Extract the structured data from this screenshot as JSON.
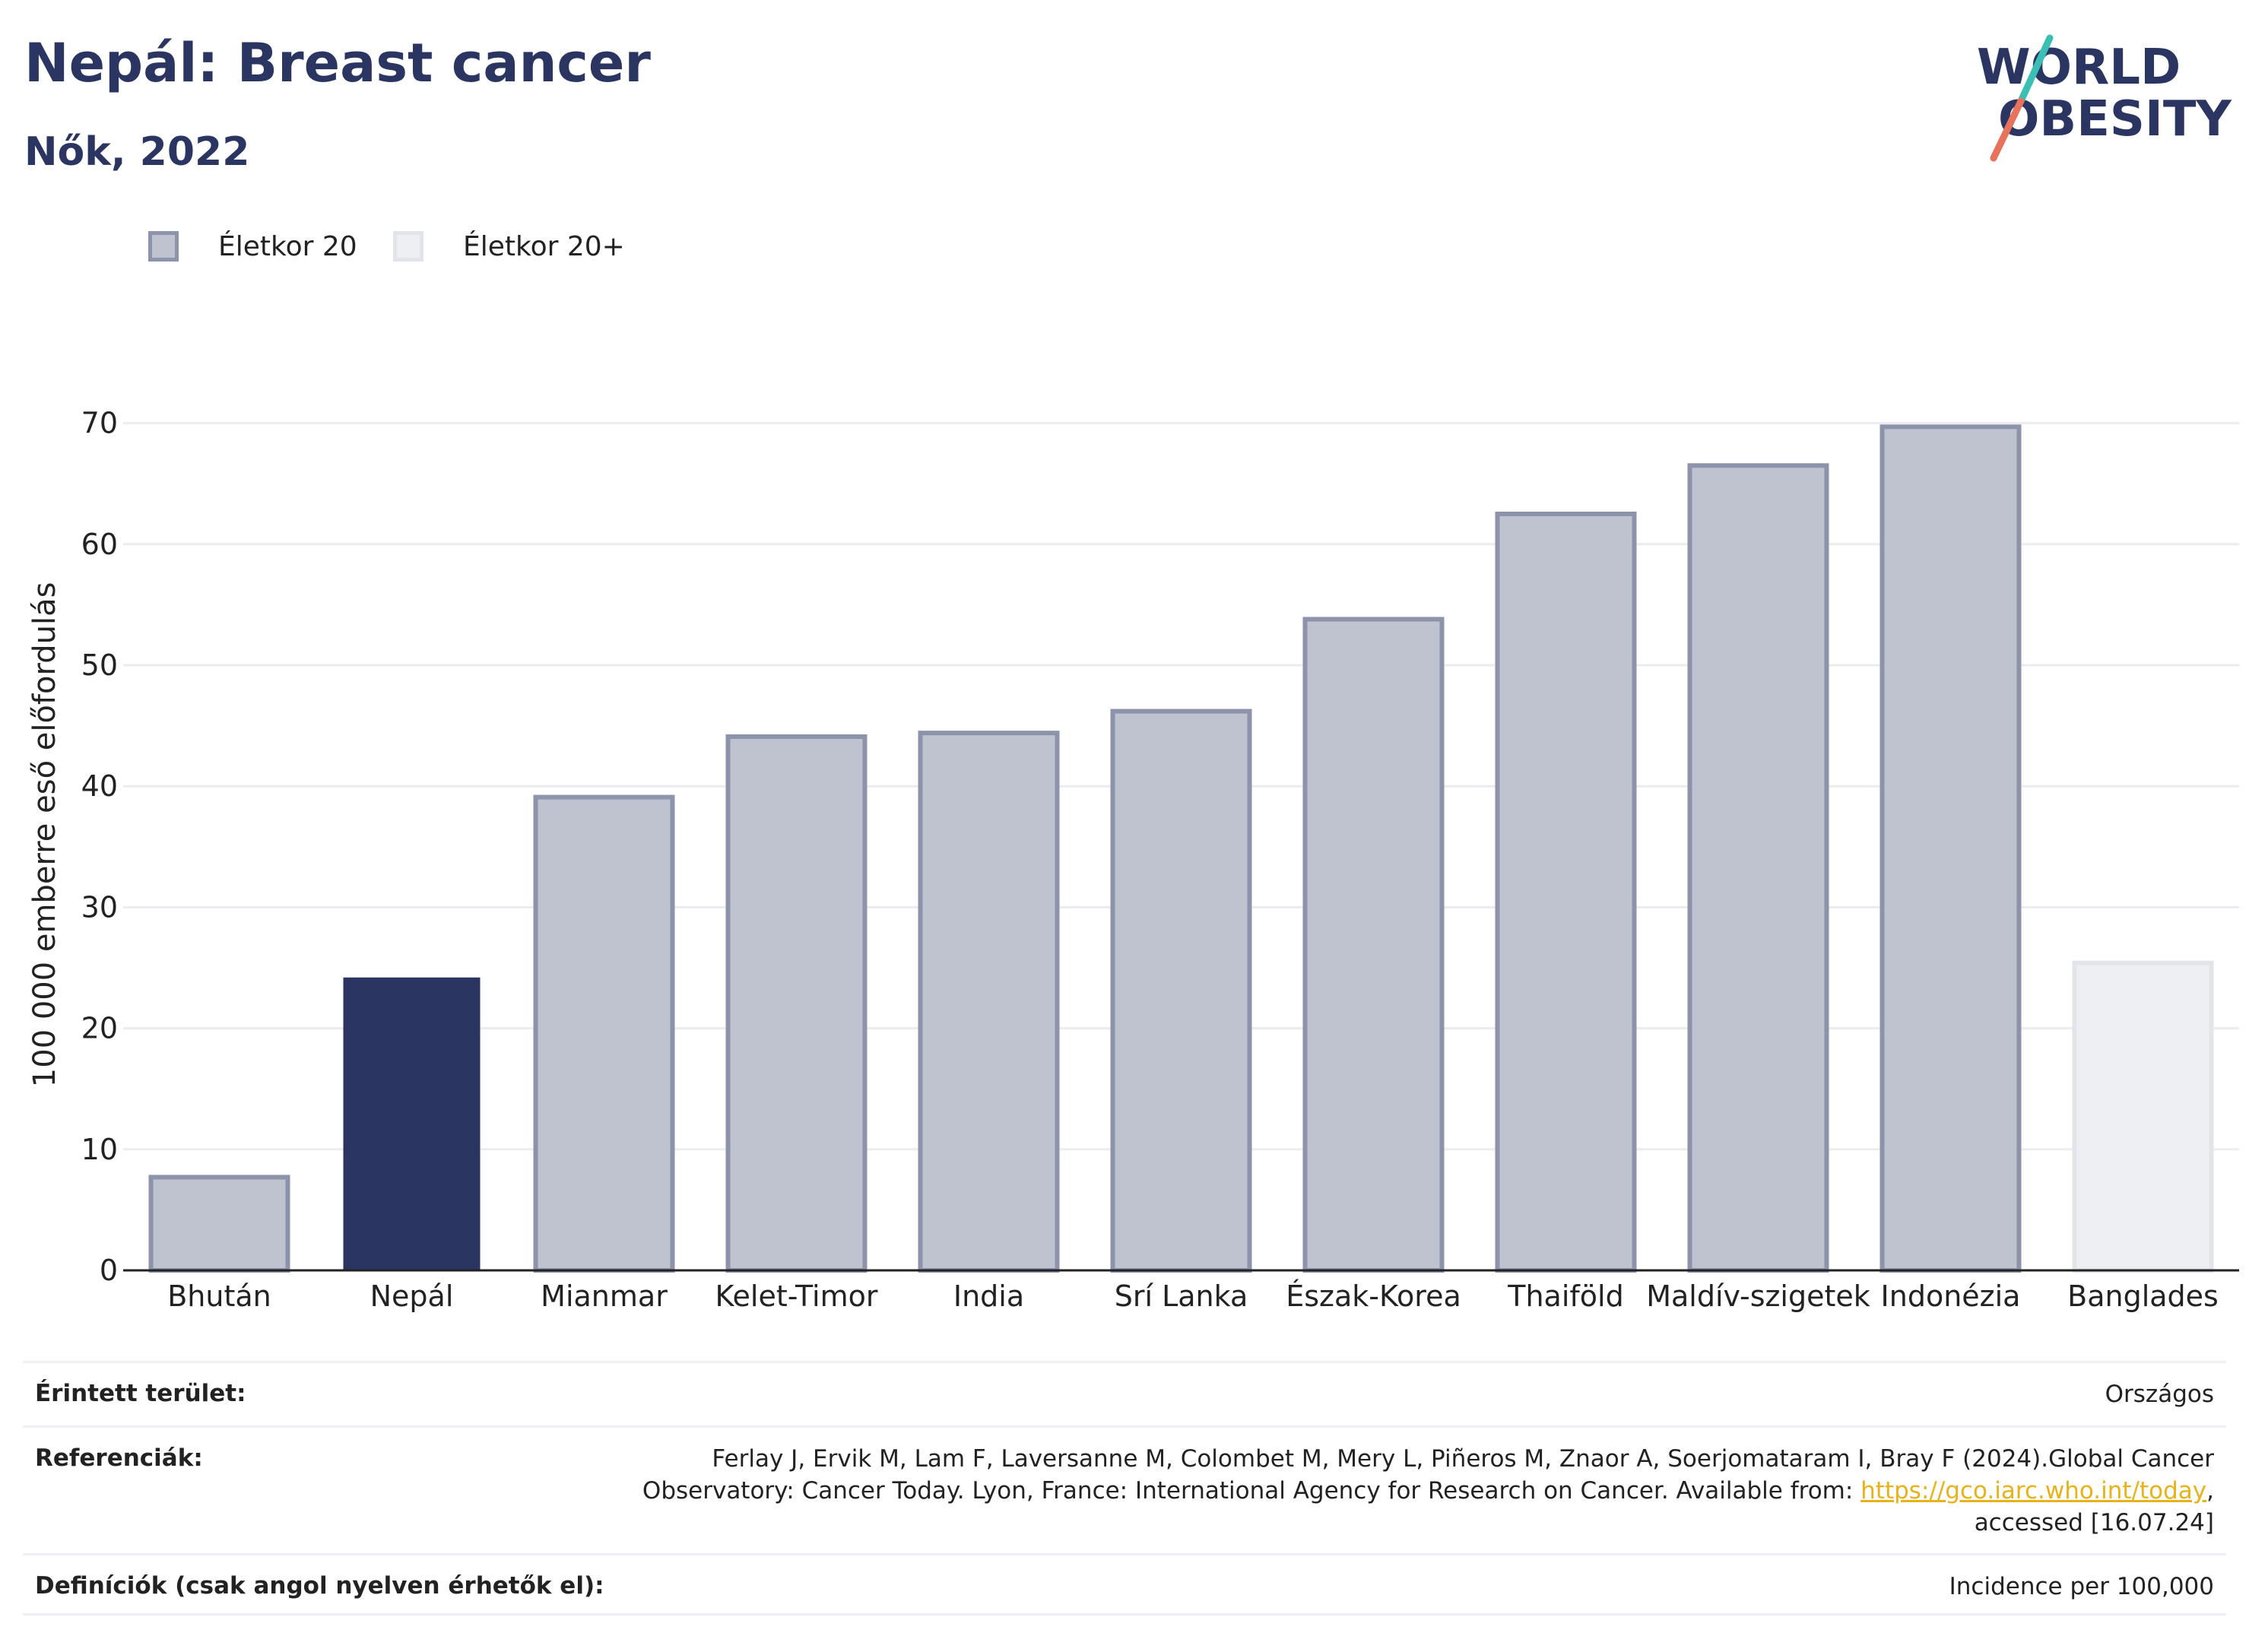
{
  "header": {
    "title": "Nepál: Breast cancer",
    "subtitle": "Nők, 2022"
  },
  "logo": {
    "line1": "WORLD",
    "line2": "OBESITY",
    "colors": {
      "text": "#2b3561",
      "slash_teal": "#3bbfb5",
      "slash_coral": "#e8735c"
    }
  },
  "legend": {
    "items": [
      {
        "label": "Életkor 20",
        "color": "#bfc3cf"
      },
      {
        "label": "Életkor 20+",
        "color": "#eeeff3"
      }
    ]
  },
  "chart_data": {
    "type": "bar",
    "ylabel": "100 000 emberre eső előfordulás",
    "ylim": [
      0,
      72
    ],
    "yticks": [
      0,
      10,
      20,
      30,
      40,
      50,
      60,
      70
    ],
    "grid": true,
    "legend_position": "top-left",
    "categories": [
      "Bhután",
      "Nepál",
      "Mianmar",
      "Kelet-Timor",
      "India",
      "Srí Lanka",
      "Észak-Korea",
      "Thaiföld",
      "Maldív-szigetek",
      "Indonézia",
      "Banglades"
    ],
    "values": [
      7.7,
      24.2,
      39.1,
      44.1,
      44.4,
      46.2,
      53.8,
      62.5,
      66.5,
      69.7,
      25.4
    ],
    "bar_series": [
      "Életkor 20",
      "Életkor 20",
      "Életkor 20",
      "Életkor 20",
      "Életkor 20",
      "Életkor 20",
      "Életkor 20",
      "Életkor 20",
      "Életkor 20",
      "Életkor 20",
      "Életkor 20+"
    ],
    "highlight": "Nepál",
    "colors": {
      "highlight": "#2b3561",
      "age20_fill": "#bfc3cf",
      "age20_edge": "#8d93aa",
      "age20plus_fill": "#eeeff3",
      "age20plus_edge": "#e2e4ea",
      "grid": "#ebecef",
      "axis": "#222222"
    }
  },
  "info": {
    "area_label": "Érintett terület:",
    "area_value": "Országos",
    "references_label": "Referenciák:",
    "references_line1": "Ferlay J, Ervik M, Lam F, Laversanne M, Colombet M, Mery L, Piñeros M, Znaor A, Soerjomataram I, Bray F (2024).Global Cancer",
    "references_line2_pre": "Observatory: Cancer Today. Lyon, France: International Agency for Research on Cancer. Available from: ",
    "references_link": "https://gco.iarc.who.int/today",
    "references_line2_post": ",",
    "references_line3": "accessed [16.07.24]",
    "definitions_label": "Definíciók (csak angol nyelven érhetők el):",
    "definitions_value": "Incidence per 100,000",
    "link_color": "#e8b21a"
  }
}
